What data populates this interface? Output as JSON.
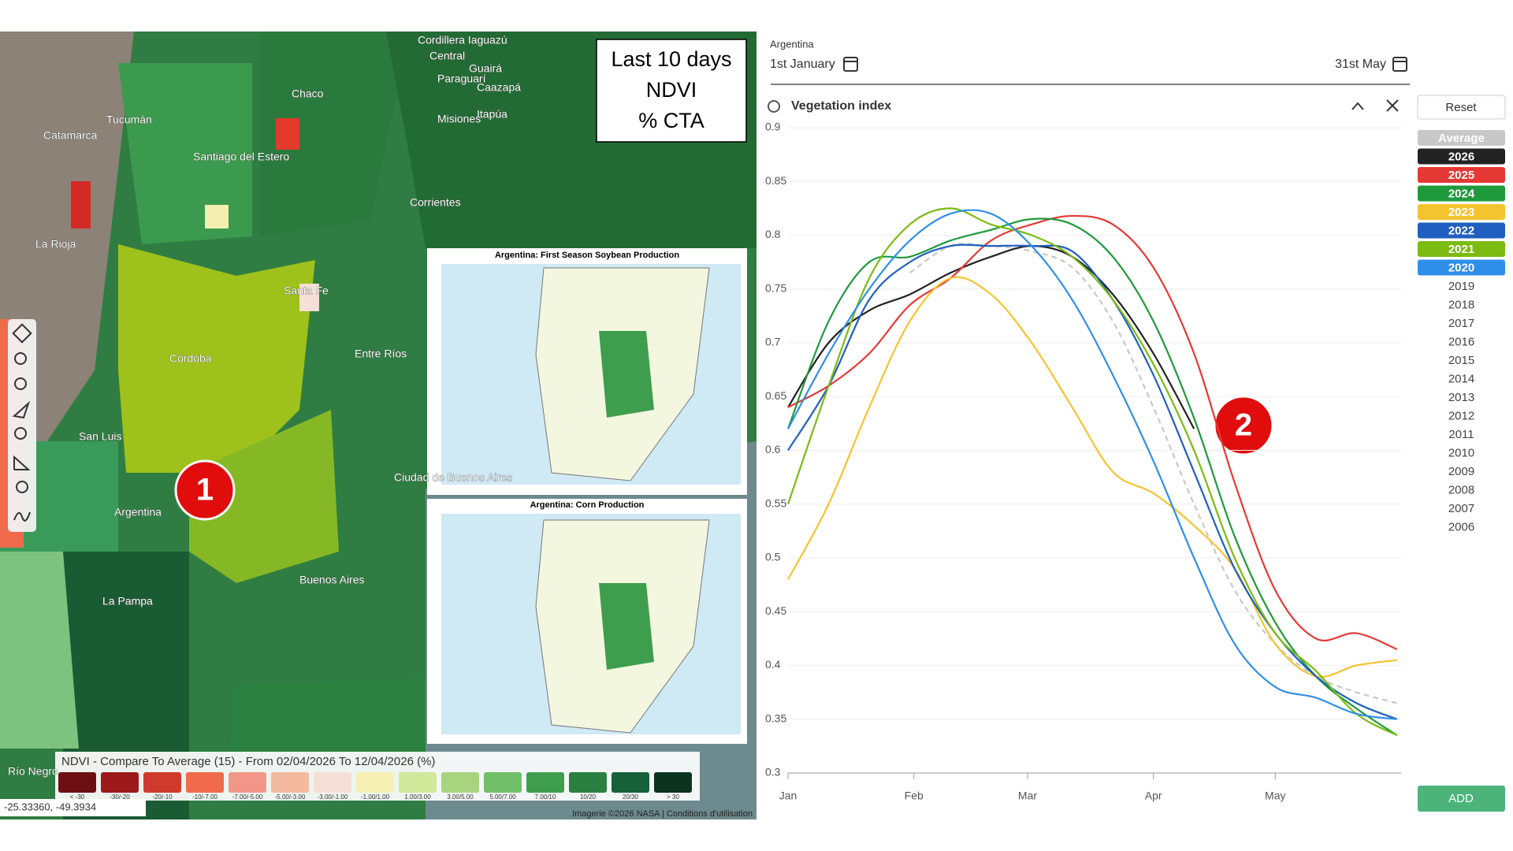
{
  "map": {
    "box_lines": [
      "Last 10 days",
      "NDVI",
      "% CTA"
    ],
    "marker": "1",
    "places": [
      "Cordillera Iaguazú",
      "Central",
      "Guairá",
      "Paraguarí",
      "Caazapá",
      "Misiones",
      "Itapúa",
      "Tucumán",
      "Catamarca",
      "Chaco",
      "Santiago del Estero",
      "Corrientes",
      "La Rioja",
      "Santa Fe",
      "Córdoba",
      "Entre Ríos",
      "San Luis",
      "Argentina",
      "Ciudad de Buenos Aires",
      "Buenos Aires",
      "La Pampa",
      "Río Negro"
    ],
    "legend_title": "NDVI - Compare To Average (15) - From 02/04/2026 To 12/04/2026 (%)",
    "legend_bins": [
      "< -30",
      "-30/-20",
      "-20/-10",
      "-10/-7.00",
      "-7.00/-5.00",
      "-5.00/-3.00",
      "-3.00/-1.00",
      "-1.00/1.00",
      "1.00/3.00",
      "3.00/5.00",
      "5.00/7.00",
      "7.00/10",
      "10/20",
      "20/30",
      "> 30"
    ],
    "coordinates": "-25.33360, -49.3934",
    "attribution": "Imagerie ©2026 NASA | Conditions d'utilisation",
    "inset_titles": [
      "Argentina: First Season Soybean Production",
      "Argentina: Corn Production"
    ]
  },
  "controls": {
    "region": "Argentina",
    "start": "1st January",
    "end": "31st May",
    "panel_title": "Vegetation index",
    "reset": "Reset",
    "add": "ADD",
    "marker": "2",
    "inactive_years": [
      "2019",
      "2018",
      "2017",
      "2016",
      "2015",
      "2014",
      "2013",
      "2012",
      "2011",
      "2010",
      "2009",
      "2008",
      "2007",
      "2006"
    ]
  },
  "chart_data": {
    "type": "line",
    "x": [
      0,
      10,
      20,
      30,
      40,
      50,
      60,
      70,
      80,
      90,
      100,
      110,
      120,
      130,
      140,
      150
    ],
    "xlim": [
      0,
      151
    ],
    "xticks": [
      {
        "value": 0,
        "label": "Jan"
      },
      {
        "value": 31,
        "label": "Feb"
      },
      {
        "value": 59,
        "label": "Mar"
      },
      {
        "value": 90,
        "label": "Apr"
      },
      {
        "value": 120,
        "label": "May"
      }
    ],
    "ylim": [
      0.3,
      0.9
    ],
    "yticks": [
      0.9,
      0.85,
      0.8,
      0.75,
      0.7,
      0.65,
      0.6,
      0.55,
      0.5,
      0.45,
      0.4,
      0.35,
      0.3
    ],
    "grid": true,
    "series": [
      {
        "name": "Average",
        "color": "#c8c8c8",
        "dashed": true,
        "values": [
          null,
          null,
          null,
          0.765,
          0.79,
          0.79,
          0.785,
          0.77,
          0.72,
          0.64,
          0.55,
          0.47,
          0.42,
          0.39,
          0.375,
          0.365
        ]
      },
      {
        "name": "2026",
        "color": "#222222",
        "values": [
          0.64,
          0.7,
          0.73,
          0.745,
          0.765,
          0.78,
          0.79,
          0.78,
          0.745,
          0.69,
          0.62,
          null,
          null,
          null,
          null,
          null
        ]
      },
      {
        "name": "2025",
        "color": "#e53935",
        "values": [
          0.64,
          0.66,
          0.69,
          0.735,
          0.76,
          0.795,
          0.81,
          0.818,
          0.81,
          0.77,
          0.69,
          0.57,
          0.47,
          0.425,
          0.43,
          0.415
        ]
      },
      {
        "name": "2024",
        "color": "#1e9a3c",
        "values": [
          0.62,
          0.72,
          0.775,
          0.78,
          0.795,
          0.805,
          0.815,
          0.81,
          0.78,
          0.72,
          0.63,
          0.52,
          0.44,
          0.39,
          0.36,
          0.335
        ]
      },
      {
        "name": "2023",
        "color": "#f4c430",
        "values": [
          0.48,
          0.55,
          0.64,
          0.72,
          0.76,
          0.745,
          0.7,
          0.64,
          0.58,
          0.56,
          0.53,
          0.49,
          0.42,
          0.39,
          0.4,
          0.405
        ]
      },
      {
        "name": "2022",
        "color": "#1f5fbf",
        "values": [
          0.6,
          0.66,
          0.74,
          0.775,
          0.79,
          0.79,
          0.79,
          0.785,
          0.74,
          0.67,
          0.58,
          0.49,
          0.43,
          0.39,
          0.365,
          0.35
        ]
      },
      {
        "name": "2021",
        "color": "#7cbb12",
        "values": [
          0.55,
          0.66,
          0.76,
          0.81,
          0.825,
          0.81,
          0.8,
          0.78,
          0.74,
          0.68,
          0.6,
          0.5,
          0.43,
          0.395,
          0.355,
          0.335
        ]
      },
      {
        "name": "2020",
        "color": "#2f8fe8",
        "values": [
          0.62,
          0.69,
          0.75,
          0.795,
          0.82,
          0.82,
          0.79,
          0.74,
          0.67,
          0.59,
          0.5,
          0.42,
          0.38,
          0.37,
          0.355,
          0.35
        ]
      }
    ]
  }
}
